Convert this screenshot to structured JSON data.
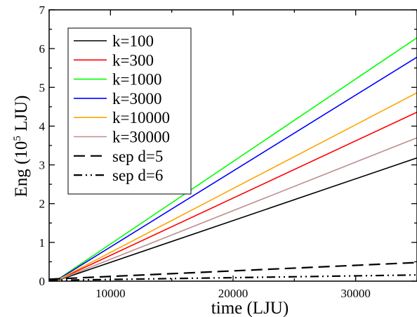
{
  "chart_data": {
    "type": "line",
    "xlabel": "time (LJU)",
    "ylabel": {
      "prefix": "Eng (10",
      "sup": "5",
      "suffix": " LJU)"
    },
    "xlim": [
      5000,
      35000
    ],
    "ylim": [
      0,
      7
    ],
    "x_ticks": [
      10000,
      20000,
      30000
    ],
    "y_ticks": [
      0,
      1,
      2,
      3,
      4,
      5,
      6,
      7
    ],
    "legend_position": "top-left",
    "grid": false,
    "series": [
      {
        "name": "k=100",
        "color": "#000000",
        "dash": "solid",
        "x": [
          5500,
          35000
        ],
        "y": [
          0.0,
          3.18
        ]
      },
      {
        "name": "k=300",
        "color": "#ff0000",
        "dash": "solid",
        "x": [
          5500,
          35000
        ],
        "y": [
          0.0,
          4.36
        ]
      },
      {
        "name": "k=1000",
        "color": "#00ff00",
        "dash": "solid",
        "x": [
          5500,
          35000
        ],
        "y": [
          0.0,
          6.28
        ]
      },
      {
        "name": "k=3000",
        "color": "#0000ff",
        "dash": "solid",
        "x": [
          5500,
          35000
        ],
        "y": [
          0.0,
          5.78
        ]
      },
      {
        "name": "k=10000",
        "color": "#ffa500",
        "dash": "solid",
        "x": [
          5500,
          35000
        ],
        "y": [
          0.0,
          4.86
        ]
      },
      {
        "name": "k=30000",
        "color": "#bc8f8f",
        "dash": "solid",
        "x": [
          5500,
          35000
        ],
        "y": [
          0.0,
          3.7
        ]
      },
      {
        "name": "sep d=5",
        "color": "#000000",
        "dash": "dashed",
        "x": [
          5000,
          35000
        ],
        "y": [
          0.05,
          0.48
        ]
      },
      {
        "name": "sep d=6",
        "color": "#000000",
        "dash": "dashdotdot",
        "x": [
          5000,
          35000
        ],
        "y": [
          0.02,
          0.16
        ]
      }
    ]
  }
}
